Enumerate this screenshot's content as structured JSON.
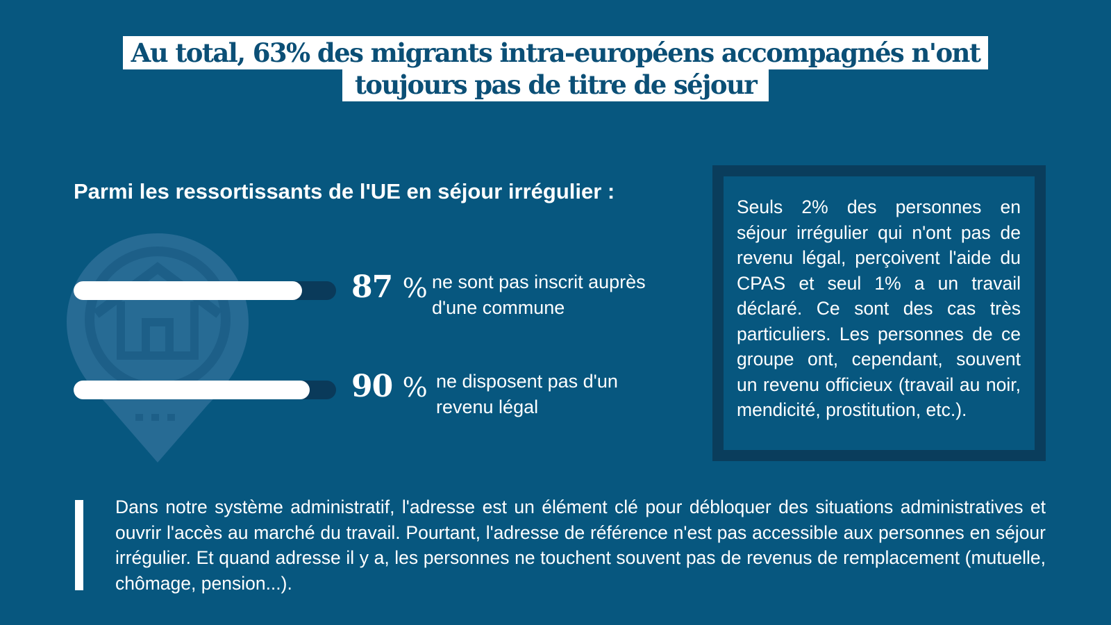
{
  "title": {
    "line1": "Au total, 63% des migrants intra-européens accompagnés n'ont",
    "line2": "toujours pas de titre de séjour"
  },
  "subtitle": "Parmi les ressortissants de l'UE en séjour irrégulier :",
  "stats": [
    {
      "value": "87",
      "unit": "%",
      "fraction": 0.87,
      "line1": "ne sont pas inscrit auprès",
      "line2": "d'une commune"
    },
    {
      "value": "90",
      "unit": "%",
      "fraction": 0.9,
      "line1": "ne disposent pas d'un",
      "line2": "revenu légal"
    }
  ],
  "icons": {
    "background": "house-location-pin-icon"
  },
  "side_box": {
    "text": "Seuls 2% des personnes en séjour irrégulier qui n'ont pas de revenu légal, perçoivent l'aide du CPAS et seul 1% a un travail déclaré. Ce sont des cas très particuliers. Les personnes de ce groupe ont, cependant, souvent un revenu officieux (travail au noir, mendicité, prostitution, etc.)."
  },
  "footer": {
    "text": "Dans notre système administratif, l'adresse est un élément clé pour débloquer des situations administratives et ouvrir l'accès au marché du travail. Pourtant, l'adresse de référence n'est pas accessible aux personnes en séjour irrégulier. Et quand adresse il y a, les personnes ne touchent souvent pas de revenus de remplacement (mutuelle, chômage, pension...)."
  },
  "colors": {
    "background": "#07577f",
    "box_border": "#0a3d5c",
    "title_text": "#0b4f76",
    "bar_track": "#0a3a5a",
    "bar_fill": "#ffffff"
  }
}
